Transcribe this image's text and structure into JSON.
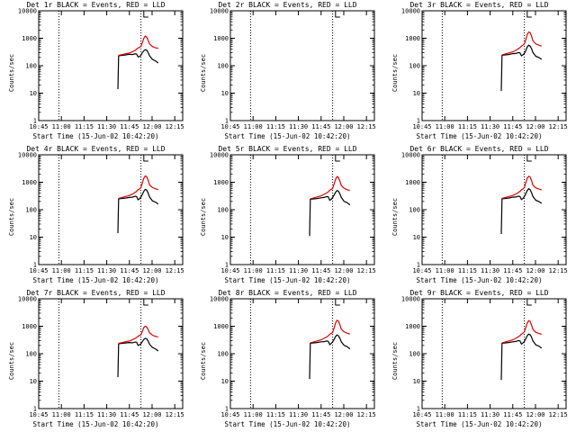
{
  "chart_data": [
    {
      "type": "line",
      "title": "Det 1r BLACK = Events, RED = LLD",
      "xlabel": "Start Time (15-Jun-02 10:42:20)",
      "ylabel": "Counts/sec",
      "yscale": "log",
      "ylim": [
        1,
        10000
      ],
      "xlim": [
        0,
        100
      ],
      "x_ticks": [
        "10:45",
        "11:00",
        "11:15",
        "11:30",
        "11:45",
        "12:00",
        "12:15"
      ],
      "y_ticks": [
        "1",
        "10",
        "100",
        "1000",
        "10000"
      ],
      "dotted_lines": [
        14,
        71
      ],
      "marker_top": 73,
      "x": [
        55,
        55.5,
        57,
        60,
        63,
        65,
        67,
        68,
        69,
        70,
        71,
        72,
        73,
        74,
        75,
        76,
        77,
        79,
        81,
        83
      ],
      "series": [
        {
          "name": "Events",
          "color": "#000000",
          "values": [
            14,
            230,
            235,
            245,
            260,
            255,
            270,
            265,
            210,
            215,
            240,
            300,
            350,
            380,
            370,
            300,
            230,
            170,
            150,
            125
          ]
        },
        {
          "name": "LLD",
          "color": "#e00000",
          "values": [
            null,
            240,
            250,
            270,
            290,
            320,
            360,
            400,
            440,
            470,
            500,
            700,
            1000,
            1200,
            1100,
            850,
            620,
            500,
            450,
            430
          ]
        }
      ]
    },
    {
      "type": "line",
      "title": "Det 2r BLACK = Events, RED = LLD",
      "xlabel": "Start Time (15-Jun-02 10:42:20)",
      "ylabel": "Counts/sec",
      "yscale": "log",
      "ylim": [
        1,
        10000
      ],
      "xlim": [
        0,
        100
      ],
      "x_ticks": [
        "10:45",
        "11:00",
        "11:15",
        "11:30",
        "11:45",
        "12:00",
        "12:15"
      ],
      "y_ticks": [
        "1",
        "10",
        "100",
        "1000",
        "10000"
      ],
      "dotted_lines": [
        14,
        71
      ],
      "marker_top": 73,
      "x": [],
      "series": [
        {
          "name": "Events",
          "color": "#000000",
          "values": []
        },
        {
          "name": "LLD",
          "color": "#e00000",
          "values": []
        }
      ]
    },
    {
      "type": "line",
      "title": "Det 3r BLACK = Events, RED = LLD",
      "xlabel": "Start Time (15-Jun-02 10:42:20)",
      "ylabel": "Counts/sec",
      "yscale": "log",
      "ylim": [
        1,
        10000
      ],
      "xlim": [
        0,
        100
      ],
      "x_ticks": [
        "10:45",
        "11:00",
        "11:15",
        "11:30",
        "11:45",
        "12:00",
        "12:15"
      ],
      "y_ticks": [
        "1",
        "10",
        "100",
        "1000",
        "10000"
      ],
      "dotted_lines": [
        14,
        71
      ],
      "marker_top": 73,
      "x": [
        55,
        55.5,
        57,
        60,
        63,
        65,
        67,
        68,
        69,
        70,
        71,
        72,
        73,
        74,
        75,
        76,
        77,
        79,
        81,
        83
      ],
      "series": [
        {
          "name": "Events",
          "color": "#000000",
          "values": [
            12,
            240,
            245,
            255,
            275,
            280,
            300,
            290,
            230,
            250,
            280,
            350,
            480,
            560,
            520,
            420,
            300,
            220,
            200,
            170
          ]
        },
        {
          "name": "LLD",
          "color": "#e00000",
          "values": [
            null,
            250,
            260,
            290,
            320,
            360,
            420,
            460,
            520,
            560,
            620,
            900,
            1350,
            1700,
            1600,
            1200,
            800,
            620,
            560,
            520
          ]
        }
      ]
    },
    {
      "type": "line",
      "title": "Det 4r BLACK = Events, RED = LLD",
      "xlabel": "Start Time (15-Jun-02 10:42:20)",
      "ylabel": "Counts/sec",
      "yscale": "log",
      "ylim": [
        1,
        10000
      ],
      "xlim": [
        0,
        100
      ],
      "x_ticks": [
        "10:45",
        "11:00",
        "11:15",
        "11:30",
        "11:45",
        "12:00",
        "12:15"
      ],
      "y_ticks": [
        "1",
        "10",
        "100",
        "1000",
        "10000"
      ],
      "dotted_lines": [
        14,
        71
      ],
      "marker_top": 73,
      "x": [
        55,
        55.5,
        57,
        60,
        63,
        65,
        67,
        68,
        69,
        70,
        71,
        72,
        73,
        74,
        75,
        76,
        77,
        79,
        81,
        83
      ],
      "series": [
        {
          "name": "Events",
          "color": "#000000",
          "values": [
            14,
            250,
            255,
            265,
            280,
            285,
            310,
            300,
            230,
            250,
            290,
            360,
            470,
            550,
            520,
            400,
            290,
            210,
            190,
            160
          ]
        },
        {
          "name": "LLD",
          "color": "#e00000",
          "values": [
            null,
            260,
            270,
            300,
            330,
            370,
            430,
            470,
            530,
            570,
            640,
            950,
            1400,
            1700,
            1600,
            1200,
            800,
            640,
            580,
            540
          ]
        }
      ]
    },
    {
      "type": "line",
      "title": "Det 5r BLACK = Events, RED = LLD",
      "xlabel": "Start Time (15-Jun-02 10:42:20)",
      "ylabel": "Counts/sec",
      "yscale": "log",
      "ylim": [
        1,
        10000
      ],
      "xlim": [
        0,
        100
      ],
      "x_ticks": [
        "10:45",
        "11:00",
        "11:15",
        "11:30",
        "11:45",
        "12:00",
        "12:15"
      ],
      "y_ticks": [
        "1",
        "10",
        "100",
        "1000",
        "10000"
      ],
      "dotted_lines": [
        14,
        71
      ],
      "marker_top": 73,
      "x": [
        55,
        55.5,
        57,
        60,
        63,
        65,
        67,
        68,
        69,
        70,
        71,
        72,
        73,
        74,
        75,
        76,
        77,
        79,
        81,
        83
      ],
      "series": [
        {
          "name": "Events",
          "color": "#000000",
          "values": [
            11,
            240,
            245,
            255,
            270,
            280,
            300,
            290,
            220,
            240,
            280,
            340,
            430,
            500,
            470,
            380,
            280,
            200,
            180,
            150
          ]
        },
        {
          "name": "LLD",
          "color": "#e00000",
          "values": [
            null,
            250,
            260,
            290,
            320,
            360,
            410,
            450,
            510,
            550,
            600,
            850,
            1250,
            1600,
            1500,
            1100,
            760,
            600,
            540,
            500
          ]
        }
      ]
    },
    {
      "type": "line",
      "title": "Det 6r BLACK = Events, RED = LLD",
      "xlabel": "Start Time (15-Jun-02 10:42:20)",
      "ylabel": "Counts/sec",
      "yscale": "log",
      "ylim": [
        1,
        10000
      ],
      "xlim": [
        0,
        100
      ],
      "x_ticks": [
        "10:45",
        "11:00",
        "11:15",
        "11:30",
        "11:45",
        "12:00",
        "12:15"
      ],
      "y_ticks": [
        "1",
        "10",
        "100",
        "1000",
        "10000"
      ],
      "dotted_lines": [
        14,
        71
      ],
      "marker_top": 73,
      "x": [
        55,
        55.5,
        57,
        60,
        63,
        65,
        67,
        68,
        69,
        70,
        71,
        72,
        73,
        74,
        75,
        76,
        77,
        79,
        81,
        83
      ],
      "series": [
        {
          "name": "Events",
          "color": "#000000",
          "values": [
            13,
            250,
            255,
            265,
            285,
            290,
            310,
            300,
            235,
            255,
            300,
            380,
            500,
            580,
            540,
            420,
            300,
            220,
            200,
            170
          ]
        },
        {
          "name": "LLD",
          "color": "#e00000",
          "values": [
            null,
            260,
            270,
            300,
            330,
            370,
            430,
            470,
            530,
            570,
            640,
            950,
            1400,
            1650,
            1550,
            1150,
            780,
            620,
            570,
            530
          ]
        }
      ]
    },
    {
      "type": "line",
      "title": "Det 7r BLACK = Events, RED = LLD",
      "xlabel": "Start Time (15-Jun-02 10:42:20)",
      "ylabel": "Counts/sec",
      "yscale": "log",
      "ylim": [
        1,
        10000
      ],
      "xlim": [
        0,
        100
      ],
      "x_ticks": [
        "10:45",
        "11:00",
        "11:15",
        "11:30",
        "11:45",
        "12:00",
        "12:15"
      ],
      "y_ticks": [
        "1",
        "10",
        "100",
        "1000",
        "10000"
      ],
      "dotted_lines": [
        14,
        71
      ],
      "marker_top": 73,
      "x": [
        55,
        55.5,
        57,
        60,
        63,
        65,
        67,
        68,
        69,
        70,
        71,
        72,
        73,
        74,
        75,
        76,
        77,
        79,
        81,
        83
      ],
      "series": [
        {
          "name": "Events",
          "color": "#000000",
          "values": [
            14,
            230,
            235,
            245,
            255,
            250,
            265,
            260,
            200,
            210,
            230,
            280,
            330,
            360,
            350,
            290,
            220,
            170,
            150,
            125
          ]
        },
        {
          "name": "LLD",
          "color": "#e00000",
          "values": [
            null,
            240,
            250,
            270,
            290,
            320,
            360,
            390,
            430,
            460,
            490,
            650,
            900,
            1000,
            950,
            750,
            580,
            470,
            430,
            410
          ]
        }
      ]
    },
    {
      "type": "line",
      "title": "Det 8r BLACK = Events, RED = LLD",
      "xlabel": "Start Time (15-Jun-02 10:42:20)",
      "ylabel": "Counts/sec",
      "yscale": "log",
      "ylim": [
        1,
        10000
      ],
      "xlim": [
        0,
        100
      ],
      "x_ticks": [
        "10:45",
        "11:00",
        "11:15",
        "11:30",
        "11:45",
        "12:00",
        "12:15"
      ],
      "y_ticks": [
        "1",
        "10",
        "100",
        "1000",
        "10000"
      ],
      "dotted_lines": [
        14,
        71
      ],
      "marker_top": 73,
      "x": [
        55,
        55.5,
        57,
        60,
        63,
        65,
        67,
        68,
        69,
        70,
        71,
        72,
        73,
        74,
        75,
        76,
        77,
        79,
        81,
        83
      ],
      "series": [
        {
          "name": "Events",
          "color": "#000000",
          "values": [
            12,
            240,
            245,
            255,
            270,
            275,
            290,
            280,
            215,
            235,
            270,
            330,
            420,
            480,
            450,
            370,
            270,
            200,
            180,
            150
          ]
        },
        {
          "name": "LLD",
          "color": "#e00000",
          "values": [
            null,
            250,
            260,
            290,
            320,
            360,
            410,
            450,
            510,
            550,
            600,
            850,
            1300,
            1650,
            1550,
            1150,
            780,
            620,
            560,
            520
          ]
        }
      ]
    },
    {
      "type": "line",
      "title": "Det 9r BLACK = Events, RED = LLD",
      "xlabel": "Start Time (15-Jun-02 10:42:20)",
      "ylabel": "Counts/sec",
      "yscale": "log",
      "ylim": [
        1,
        10000
      ],
      "xlim": [
        0,
        100
      ],
      "x_ticks": [
        "10:45",
        "11:00",
        "11:15",
        "11:30",
        "11:45",
        "12:00",
        "12:15"
      ],
      "y_ticks": [
        "1",
        "10",
        "100",
        "1000",
        "10000"
      ],
      "dotted_lines": [
        14,
        71
      ],
      "marker_top": 73,
      "x": [
        55,
        55.5,
        57,
        60,
        63,
        65,
        67,
        68,
        69,
        70,
        71,
        72,
        73,
        74,
        75,
        76,
        77,
        79,
        81,
        83
      ],
      "series": [
        {
          "name": "Events",
          "color": "#000000",
          "values": [
            11,
            240,
            245,
            255,
            270,
            280,
            300,
            290,
            225,
            245,
            280,
            350,
            450,
            520,
            490,
            400,
            290,
            210,
            190,
            160
          ]
        },
        {
          "name": "LLD",
          "color": "#e00000",
          "values": [
            null,
            250,
            260,
            290,
            320,
            360,
            420,
            460,
            520,
            560,
            620,
            900,
            1300,
            1600,
            1500,
            1100,
            760,
            600,
            550,
            510
          ]
        }
      ]
    }
  ]
}
